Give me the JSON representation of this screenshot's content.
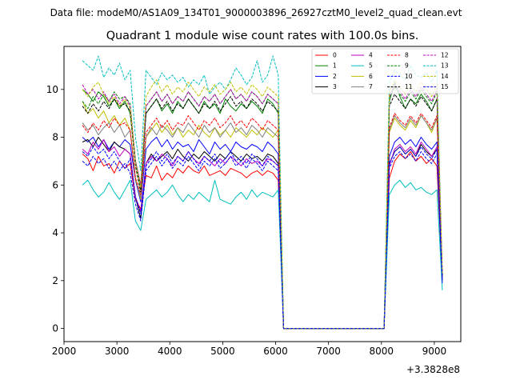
{
  "figure": {
    "supertitle": "Data file: modeM0/AS1A09_134T01_9000003896_26927cztM0_level2_quad_clean.evt"
  },
  "chart_data": {
    "type": "line",
    "title": "Quadrant 1 module wise count rates with 100.0s bins.",
    "xlabel": "",
    "ylabel": "",
    "x_offset_label": "+3.3828e8",
    "xlim": [
      2000,
      9500
    ],
    "ylim": [
      -0.55,
      11.8
    ],
    "xticks": [
      2000,
      3000,
      4000,
      5000,
      6000,
      7000,
      8000,
      9000
    ],
    "yticks": [
      0,
      2,
      4,
      6,
      8,
      10
    ],
    "legend_position": "top-right",
    "x": [
      2350,
      2450,
      2550,
      2650,
      2750,
      2850,
      2950,
      3050,
      3150,
      3250,
      3350,
      3450,
      3550,
      3650,
      3750,
      3850,
      3950,
      4050,
      4150,
      4250,
      4350,
      4450,
      4550,
      4650,
      4750,
      4850,
      4950,
      5050,
      5150,
      5250,
      5350,
      5450,
      5550,
      5650,
      5750,
      5850,
      5950,
      6050,
      6150,
      6250,
      6350,
      6450,
      6550,
      6650,
      6750,
      6850,
      6950,
      7050,
      7150,
      7250,
      7350,
      7450,
      7550,
      7650,
      7750,
      7850,
      7950,
      8050,
      8150,
      8250,
      8350,
      8450,
      8550,
      8650,
      8750,
      8850,
      8950,
      9050,
      9150
    ],
    "series": [
      {
        "name": "0",
        "color": "#ff0000",
        "dash": "solid",
        "values": [
          7.3,
          7.1,
          6.6,
          7.2,
          6.8,
          6.9,
          6.5,
          7.0,
          6.7,
          6.9,
          5.4,
          5.0,
          6.4,
          6.3,
          6.8,
          6.2,
          6.5,
          6.3,
          6.7,
          6.5,
          6.8,
          6.6,
          6.5,
          6.8,
          6.4,
          6.5,
          6.6,
          6.4,
          6.7,
          6.6,
          6.5,
          6.3,
          6.5,
          6.6,
          6.4,
          6.6,
          6.5,
          6.2,
          0,
          0,
          0,
          0,
          0,
          0,
          0,
          0,
          0,
          0,
          0,
          0,
          0,
          0,
          0,
          0,
          0,
          0,
          0,
          0,
          6.3,
          7.0,
          7.3,
          7.1,
          7.4,
          7.0,
          7.2,
          6.9,
          7.1,
          6.8,
          2.0
        ]
      },
      {
        "name": "1",
        "color": "#008000",
        "dash": "solid",
        "values": [
          10.0,
          9.8,
          9.5,
          9.9,
          9.7,
          9.3,
          9.6,
          9.2,
          9.5,
          9.0,
          7.0,
          6.0,
          9.0,
          9.3,
          9.6,
          9.1,
          9.4,
          9.0,
          9.5,
          9.2,
          9.6,
          9.3,
          9.0,
          9.5,
          9.2,
          9.4,
          9.0,
          9.6,
          9.3,
          9.1,
          9.4,
          9.2,
          9.5,
          9.3,
          9.0,
          9.6,
          9.4,
          9.0,
          0,
          0,
          0,
          0,
          0,
          0,
          0,
          0,
          0,
          0,
          0,
          0,
          0,
          0,
          0,
          0,
          0,
          0,
          0,
          0,
          9.5,
          10.3,
          9.7,
          9.2,
          9.6,
          9.4,
          9.8,
          9.5,
          9.1,
          9.6,
          2.2
        ]
      },
      {
        "name": "2",
        "color": "#0000ff",
        "dash": "solid",
        "values": [
          8.0,
          7.8,
          8.0,
          7.6,
          7.9,
          7.5,
          7.8,
          7.6,
          7.9,
          7.7,
          6.2,
          5.3,
          7.5,
          7.8,
          8.0,
          7.6,
          7.9,
          7.5,
          7.8,
          7.6,
          7.7,
          7.4,
          7.9,
          7.6,
          7.3,
          7.8,
          7.5,
          7.7,
          7.4,
          7.8,
          7.6,
          7.5,
          7.7,
          7.6,
          7.4,
          7.8,
          7.6,
          7.3,
          0,
          0,
          0,
          0,
          0,
          0,
          0,
          0,
          0,
          0,
          0,
          0,
          0,
          0,
          0,
          0,
          0,
          0,
          0,
          0,
          7.2,
          7.8,
          8.0,
          7.7,
          7.9,
          7.6,
          8.0,
          7.7,
          7.5,
          7.8,
          2.1
        ]
      },
      {
        "name": "3",
        "color": "#000000",
        "dash": "solid",
        "values": [
          7.8,
          7.9,
          7.6,
          8.0,
          7.7,
          7.4,
          7.8,
          7.6,
          7.5,
          7.3,
          5.5,
          4.6,
          6.9,
          7.3,
          7.0,
          7.2,
          7.4,
          7.1,
          7.5,
          7.2,
          7.0,
          7.3,
          7.1,
          7.4,
          7.2,
          7.0,
          7.3,
          7.1,
          7.4,
          7.2,
          7.0,
          7.3,
          7.1,
          7.2,
          7.0,
          7.3,
          7.2,
          6.9,
          0,
          0,
          0,
          0,
          0,
          0,
          0,
          0,
          0,
          0,
          0,
          0,
          0,
          0,
          0,
          0,
          0,
          0,
          0,
          0,
          6.9,
          7.4,
          7.6,
          7.3,
          7.5,
          7.2,
          7.7,
          7.4,
          7.2,
          7.5,
          2.0
        ]
      },
      {
        "name": "4",
        "color": "#bf00bf",
        "dash": "solid",
        "values": [
          7.5,
          7.3,
          7.8,
          7.5,
          7.9,
          7.4,
          7.6,
          7.2,
          7.5,
          7.3,
          5.5,
          4.9,
          6.9,
          7.2,
          7.0,
          7.3,
          7.1,
          6.8,
          7.2,
          7.0,
          7.4,
          7.1,
          6.9,
          7.2,
          7.0,
          6.8,
          7.1,
          6.9,
          7.2,
          7.0,
          6.8,
          7.1,
          6.9,
          7.0,
          6.8,
          7.1,
          7.0,
          6.8,
          0,
          0,
          0,
          0,
          0,
          0,
          0,
          0,
          0,
          0,
          0,
          0,
          0,
          0,
          0,
          0,
          0,
          0,
          0,
          0,
          6.8,
          7.5,
          7.7,
          7.4,
          7.6,
          7.3,
          7.8,
          7.5,
          7.2,
          7.6,
          2.0
        ]
      },
      {
        "name": "5",
        "color": "#00bfbf",
        "dash": "solid",
        "values": [
          6.0,
          6.2,
          5.8,
          5.5,
          5.7,
          6.1,
          5.7,
          5.4,
          5.8,
          6.2,
          4.5,
          4.1,
          5.4,
          5.6,
          5.8,
          5.5,
          5.7,
          6.0,
          5.6,
          5.3,
          5.6,
          5.4,
          5.7,
          5.5,
          5.3,
          6.2,
          5.4,
          5.3,
          5.2,
          5.5,
          5.7,
          5.4,
          5.8,
          5.5,
          5.7,
          5.6,
          5.5,
          5.8,
          0,
          0,
          0,
          0,
          0,
          0,
          0,
          0,
          0,
          0,
          0,
          0,
          0,
          0,
          0,
          0,
          0,
          0,
          0,
          0,
          5.6,
          6.0,
          6.2,
          5.9,
          6.1,
          5.8,
          5.9,
          5.7,
          5.6,
          5.8,
          1.6
        ]
      },
      {
        "name": "6",
        "color": "#bfbf00",
        "dash": "solid",
        "values": [
          9.5,
          9.0,
          9.2,
          8.8,
          9.1,
          8.6,
          8.9,
          8.5,
          8.8,
          8.3,
          6.3,
          5.4,
          8.0,
          8.3,
          8.6,
          8.2,
          8.5,
          8.1,
          8.4,
          8.0,
          8.3,
          8.1,
          8.5,
          8.2,
          8.0,
          8.4,
          8.1,
          8.3,
          8.0,
          8.4,
          8.2,
          8.0,
          8.3,
          8.1,
          8.4,
          8.2,
          8.0,
          8.3,
          0,
          0,
          0,
          0,
          0,
          0,
          0,
          0,
          0,
          0,
          0,
          0,
          0,
          0,
          0,
          0,
          0,
          0,
          0,
          0,
          8.2,
          8.8,
          8.5,
          8.3,
          8.7,
          8.4,
          8.9,
          8.6,
          8.2,
          8.8,
          2.0
        ]
      },
      {
        "name": "7",
        "color": "#808080",
        "dash": "solid",
        "values": [
          8.6,
          8.3,
          8.5,
          8.1,
          8.4,
          8.6,
          8.2,
          8.5,
          8.0,
          8.3,
          6.2,
          5.5,
          8.0,
          8.4,
          8.1,
          8.5,
          8.3,
          8.0,
          8.4,
          8.2,
          8.6,
          8.3,
          8.0,
          8.5,
          8.2,
          8.4,
          8.0,
          8.3,
          8.6,
          8.2,
          8.4,
          8.1,
          8.5,
          8.3,
          8.0,
          8.4,
          8.2,
          8.0,
          0,
          0,
          0,
          0,
          0,
          0,
          0,
          0,
          0,
          0,
          0,
          0,
          0,
          0,
          0,
          0,
          0,
          0,
          0,
          0,
          8.3,
          8.9,
          8.6,
          8.4,
          8.8,
          8.5,
          8.9,
          8.6,
          8.3,
          8.8,
          2.0
        ]
      },
      {
        "name": "8",
        "color": "#ff0000",
        "dash": "dashed",
        "values": [
          8.5,
          8.2,
          8.6,
          8.3,
          8.7,
          8.4,
          8.8,
          8.5,
          8.6,
          8.3,
          6.3,
          5.6,
          8.2,
          8.5,
          8.8,
          8.4,
          8.7,
          8.3,
          8.6,
          8.5,
          8.9,
          8.6,
          8.3,
          8.7,
          8.5,
          8.8,
          8.4,
          8.6,
          8.9,
          8.5,
          8.7,
          8.4,
          8.8,
          8.6,
          8.3,
          8.7,
          8.5,
          8.3,
          0,
          0,
          0,
          0,
          0,
          0,
          0,
          0,
          0,
          0,
          0,
          0,
          0,
          0,
          0,
          0,
          0,
          0,
          0,
          0,
          8.4,
          9.0,
          8.7,
          8.5,
          8.9,
          8.6,
          9.0,
          8.7,
          8.4,
          8.9,
          2.1
        ]
      },
      {
        "name": "9",
        "color": "#008000",
        "dash": "dashed",
        "values": [
          9.5,
          9.2,
          9.7,
          9.4,
          9.8,
          9.5,
          9.9,
          9.6,
          9.7,
          9.4,
          7.0,
          5.8,
          9.3,
          9.6,
          9.9,
          9.5,
          9.8,
          9.4,
          9.7,
          9.5,
          9.9,
          9.6,
          9.3,
          9.7,
          9.5,
          9.8,
          9.4,
          9.7,
          10.0,
          9.6,
          9.8,
          9.5,
          9.9,
          9.7,
          9.4,
          9.8,
          9.6,
          9.4,
          0,
          0,
          0,
          0,
          0,
          0,
          0,
          0,
          0,
          0,
          0,
          0,
          0,
          0,
          0,
          0,
          0,
          0,
          0,
          0,
          9.6,
          10.1,
          9.8,
          9.5,
          9.9,
          9.6,
          10.0,
          9.7,
          9.4,
          9.9,
          2.2
        ]
      },
      {
        "name": "10",
        "color": "#0000ff",
        "dash": "dashed",
        "values": [
          7.4,
          7.2,
          7.6,
          7.3,
          7.5,
          7.1,
          7.4,
          7.0,
          6.7,
          7.1,
          5.5,
          4.8,
          6.8,
          7.1,
          7.4,
          7.0,
          7.3,
          6.9,
          7.2,
          7.0,
          7.4,
          7.1,
          6.8,
          7.2,
          7.0,
          7.3,
          6.9,
          7.1,
          7.4,
          7.0,
          7.2,
          6.9,
          7.3,
          7.1,
          6.8,
          7.2,
          7.0,
          6.8,
          0,
          0,
          0,
          0,
          0,
          0,
          0,
          0,
          0,
          0,
          0,
          0,
          0,
          0,
          0,
          0,
          0,
          0,
          0,
          0,
          6.9,
          7.4,
          7.6,
          7.3,
          7.5,
          7.2,
          7.6,
          7.3,
          7.1,
          7.5,
          2.0
        ]
      },
      {
        "name": "11",
        "color": "#000000",
        "dash": "dashed",
        "values": [
          9.3,
          9.0,
          9.4,
          9.1,
          9.5,
          9.2,
          9.6,
          9.3,
          9.4,
          9.1,
          6.8,
          5.7,
          9.0,
          9.3,
          9.6,
          9.2,
          9.5,
          9.1,
          9.4,
          9.2,
          9.6,
          9.3,
          9.0,
          9.4,
          9.2,
          9.5,
          9.1,
          9.4,
          9.7,
          9.3,
          9.5,
          9.2,
          9.6,
          9.4,
          9.1,
          9.5,
          9.3,
          9.1,
          0,
          0,
          0,
          0,
          0,
          0,
          0,
          0,
          0,
          0,
          0,
          0,
          0,
          0,
          0,
          0,
          0,
          0,
          0,
          0,
          9.3,
          9.8,
          9.5,
          9.2,
          9.6,
          9.3,
          9.7,
          9.4,
          9.1,
          9.6,
          2.2
        ]
      },
      {
        "name": "12",
        "color": "#bf00bf",
        "dash": "dashed",
        "values": [
          10.2,
          9.8,
          10.0,
          9.6,
          9.9,
          9.5,
          9.8,
          9.4,
          9.7,
          9.3,
          7.0,
          6.0,
          9.3,
          9.6,
          9.9,
          9.5,
          9.8,
          9.4,
          9.7,
          9.5,
          9.9,
          9.6,
          9.3,
          9.7,
          9.5,
          9.8,
          9.4,
          9.7,
          10.0,
          9.6,
          9.8,
          9.5,
          9.9,
          9.7,
          9.4,
          9.8,
          9.6,
          9.4,
          0,
          0,
          0,
          0,
          0,
          0,
          0,
          0,
          0,
          0,
          0,
          0,
          0,
          0,
          0,
          0,
          0,
          0,
          0,
          0,
          9.7,
          10.2,
          9.9,
          9.6,
          10.0,
          9.7,
          10.1,
          9.8,
          9.5,
          10.0,
          2.3
        ]
      },
      {
        "name": "13",
        "color": "#00bfbf",
        "dash": "dashed",
        "values": [
          11.2,
          11.0,
          10.8,
          11.4,
          10.5,
          10.9,
          10.6,
          11.1,
          10.4,
          10.8,
          8.0,
          6.6,
          10.8,
          10.5,
          10.2,
          10.7,
          10.4,
          10.6,
          10.3,
          10.5,
          10.1,
          10.4,
          10.2,
          10.6,
          9.8,
          10.1,
          10.3,
          10.0,
          10.4,
          10.9,
          10.6,
          10.2,
          10.5,
          11.2,
          10.3,
          10.6,
          11.4,
          10.6,
          0,
          0,
          0,
          0,
          0,
          0,
          0,
          0,
          0,
          0,
          0,
          0,
          0,
          0,
          0,
          0,
          0,
          0,
          0,
          0,
          10.3,
          10.8,
          10.6,
          10.4,
          11.0,
          10.6,
          10.5,
          10.7,
          10.3,
          10.8,
          2.3
        ]
      },
      {
        "name": "14",
        "color": "#bfbf00",
        "dash": "dashed",
        "values": [
          10.0,
          9.7,
          10.1,
          10.3,
          9.8,
          9.4,
          9.7,
          9.3,
          9.6,
          9.2,
          6.9,
          5.9,
          9.7,
          10.1,
          10.4,
          9.9,
          10.2,
          9.8,
          10.1,
          9.9,
          10.3,
          10.0,
          9.7,
          10.1,
          9.9,
          10.2,
          9.8,
          10.0,
          10.3,
          9.9,
          10.1,
          9.8,
          10.2,
          10.0,
          9.7,
          10.1,
          9.9,
          9.7,
          0,
          0,
          0,
          0,
          0,
          0,
          0,
          0,
          0,
          0,
          0,
          0,
          0,
          0,
          0,
          0,
          0,
          0,
          0,
          0,
          9.9,
          10.4,
          10.1,
          9.8,
          10.2,
          9.9,
          10.3,
          10.0,
          9.7,
          10.2,
          2.3
        ]
      },
      {
        "name": "15",
        "color": "#0000ff",
        "dash": "dashed",
        "values": [
          7.0,
          6.8,
          7.2,
          6.9,
          7.1,
          6.7,
          7.0,
          6.6,
          6.9,
          6.5,
          5.2,
          4.5,
          6.6,
          6.9,
          7.2,
          6.8,
          7.1,
          6.7,
          7.0,
          6.8,
          7.2,
          6.9,
          6.6,
          7.0,
          6.8,
          7.1,
          6.7,
          6.9,
          7.2,
          6.8,
          7.0,
          6.7,
          7.1,
          6.9,
          6.6,
          7.0,
          6.8,
          6.6,
          0,
          0,
          0,
          0,
          0,
          0,
          0,
          0,
          0,
          0,
          0,
          0,
          0,
          0,
          0,
          0,
          0,
          0,
          0,
          0,
          6.7,
          7.2,
          7.4,
          7.1,
          7.3,
          7.0,
          7.4,
          7.1,
          6.9,
          7.3,
          1.9
        ]
      }
    ]
  }
}
